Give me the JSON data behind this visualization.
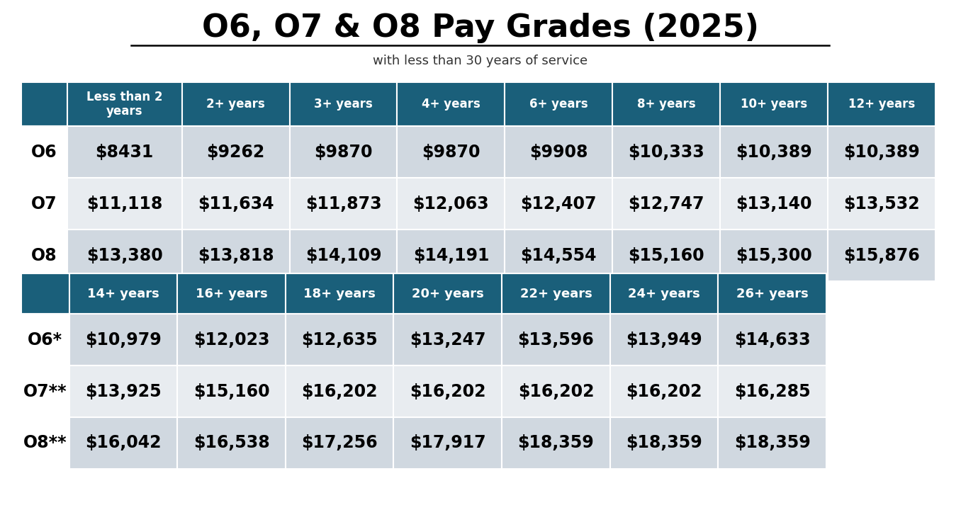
{
  "title": "O6, O7 & O8 Pay Grades (2025)",
  "subtitle": "with less than 30 years of service",
  "background_color": "#ffffff",
  "header_bg": "#1a5f7a",
  "header_color": "#ffffff",
  "row_colors": [
    "#d0d8e0",
    "#e8ecf0"
  ],
  "table1": {
    "headers": [
      "",
      "Less than 2\nyears",
      "2+ years",
      "3+ years",
      "4+ years",
      "6+ years",
      "8+ years",
      "10+ years",
      "12+ years"
    ],
    "rows": [
      [
        "O6",
        "$8431",
        "$9262",
        "$9870",
        "$9870",
        "$9908",
        "$10,333",
        "$10,389",
        "$10,389"
      ],
      [
        "O7",
        "$11,118",
        "$11,634",
        "$11,873",
        "$12,063",
        "$12,407",
        "$12,747",
        "$13,140",
        "$13,532"
      ],
      [
        "O8",
        "$13,380",
        "$13,818",
        "$14,109",
        "$14,191",
        "$14,554",
        "$15,160",
        "$15,300",
        "$15,876"
      ]
    ]
  },
  "table2": {
    "headers": [
      "",
      "14+ years",
      "16+ years",
      "18+ years",
      "20+ years",
      "22+ years",
      "24+ years",
      "26+ years"
    ],
    "rows": [
      [
        "O6*",
        "$10,979",
        "$12,023",
        "$12,635",
        "$13,247",
        "$13,596",
        "$13,949",
        "$14,633"
      ],
      [
        "O7**",
        "$13,925",
        "$15,160",
        "$16,202",
        "$16,202",
        "$16,202",
        "$16,202",
        "$16,285"
      ],
      [
        "O8**",
        "$16,042",
        "$16,538",
        "$17,256",
        "$17,917",
        "$18,359",
        "$18,359",
        "$18,359"
      ]
    ]
  }
}
